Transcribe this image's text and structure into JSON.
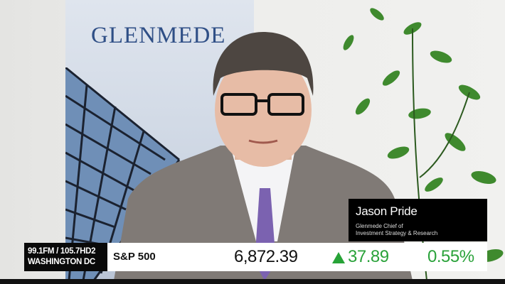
{
  "backdrop": {
    "logo_text": "GLENMEDE"
  },
  "lower_third": {
    "guest_name": "Jason Pride",
    "guest_title_line1": "Glenmede Chief of",
    "guest_title_line2": "Investment Strategy & Research"
  },
  "station": {
    "line1": "99.1FM / 105.7HD2",
    "line2": "WASHINGTON DC"
  },
  "ticker": {
    "symbol": "S&P 500",
    "price": "6,872.39",
    "direction": "up",
    "change": "37.89",
    "change_pct": "0.55%",
    "up_color": "#2aa23a"
  }
}
